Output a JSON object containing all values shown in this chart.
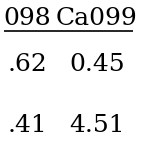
{
  "col_headers": [
    "098",
    "Ca099"
  ],
  "row1_values": [
    ".62",
    "0.45"
  ],
  "row2_values": [
    ".41",
    "4.51"
  ],
  "background_color": "#ffffff",
  "font_size": 18,
  "header_font_size": 18
}
